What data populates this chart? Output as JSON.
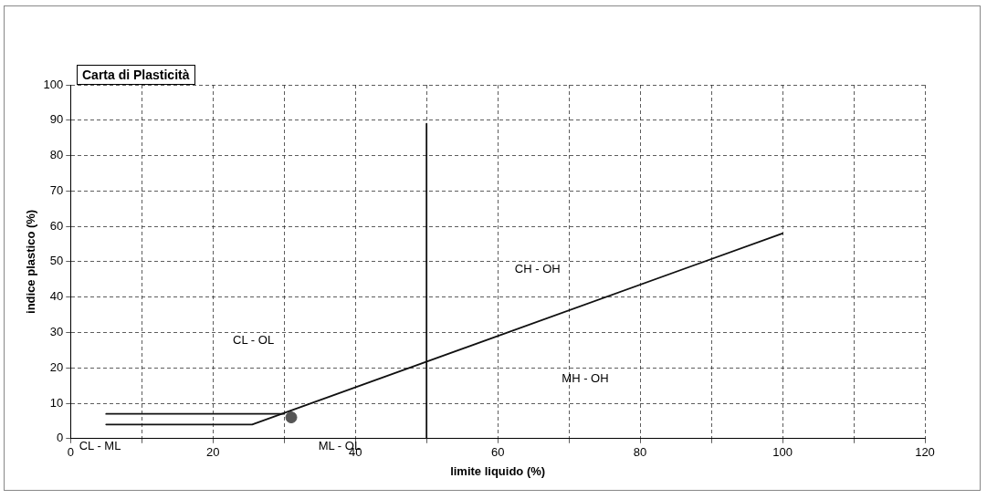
{
  "chart_data": {
    "type": "line",
    "title": "Carta di Plasticità",
    "xlabel": "limite liquido (%)",
    "ylabel": "indice plastico (%)",
    "series": [
      {
        "color": "#111111",
        "x": [
          5,
          30
        ],
        "values": [
          7,
          7
        ]
      },
      {
        "color": "#111111",
        "x": [
          5,
          25.5,
          100
        ],
        "values": [
          4,
          4,
          58
        ]
      },
      {
        "color": "#111111",
        "x": [
          50,
          50
        ],
        "values": [
          0,
          89
        ]
      },
      {
        "type": "scatter",
        "marker": "circle",
        "color": "#555555",
        "x": [
          31
        ],
        "values": [
          6
        ]
      }
    ],
    "xlim": [
      0,
      120
    ],
    "ylim": [
      0,
      100
    ],
    "xticks": [
      0,
      {
        "value": 10,
        "label": null
      },
      20,
      {
        "value": 30,
        "label": null
      },
      40,
      {
        "value": 50,
        "label": null
      },
      60,
      {
        "value": 70,
        "label": null
      },
      80,
      {
        "value": 90,
        "label": null
      },
      100,
      {
        "value": 110,
        "label": null
      },
      120
    ],
    "yticks": [
      0,
      10,
      20,
      30,
      40,
      50,
      60,
      70,
      80,
      90,
      100
    ],
    "grid": true,
    "legend": false,
    "marker": "none",
    "line_style": "solid",
    "annotations": [
      "CL - OL",
      "CH - OH",
      "MH - OH",
      "CL - ML",
      "ML - OL"
    ]
  }
}
